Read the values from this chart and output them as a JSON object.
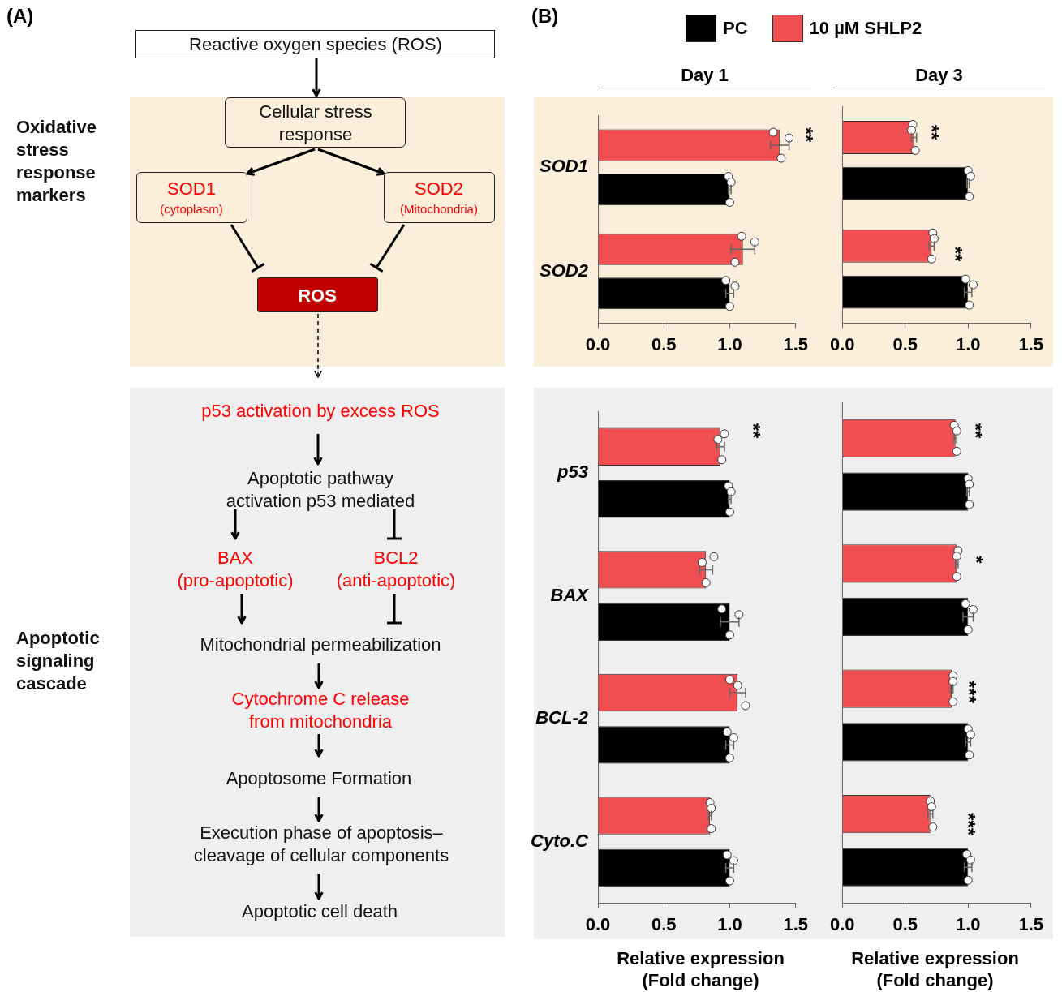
{
  "chart_data": [
    {
      "type": "other",
      "title": "(A)",
      "annotations": [
        "Reactive oxygen species (ROS)",
        "Cellular stress response",
        "SOD1",
        "(cytoplasm)",
        "SOD2",
        "(Mitochondria)",
        "ROS",
        "Oxidative stress response markers",
        "p53 activation by excess ROS",
        "Apoptotic pathway activation p53 mediated",
        "BAX",
        "(pro-apoptotic)",
        "BCL2",
        "(anti-apoptotic)",
        "Mitochondrial permeabilization",
        "Cytochrome C release from mitochondria",
        "Apoptosome Formation",
        "Execution phase of apoptosis–cleavage of cellular components",
        "Apoptotic cell death",
        "Apoptotic signaling cascade"
      ]
    },
    {
      "type": "bar",
      "orientation": "horizontal",
      "title": "Day 1",
      "categories": [
        "SOD1",
        "SOD2"
      ],
      "xlim": [
        0,
        1.5
      ],
      "xticks": [
        {
          "value": 0,
          "label": "0.0"
        },
        {
          "value": 0.5,
          "label": "0.5"
        },
        {
          "value": 1,
          "label": "1.0"
        },
        {
          "value": 1.5,
          "label": "1.5"
        }
      ],
      "legend": "top",
      "grid": false,
      "marker": "circle",
      "annotations": [
        "(B)",
        "**"
      ],
      "series": [
        {
          "name": "PC",
          "color": "#000000",
          "values": [
            1.0,
            1.0
          ],
          "errors": [
            0.01,
            0.03
          ]
        },
        {
          "name": "10 µM SHLP2",
          "color": "#f04e50",
          "values": [
            1.38,
            1.1
          ],
          "errors": [
            0.07,
            0.09
          ]
        },
        {
          "type": "scatter",
          "color": "#ffffff",
          "x": [
            "SOD1",
            "SOD1",
            "SOD1",
            "SOD2",
            "SOD2",
            "SOD2"
          ],
          "values": [
            0.99,
            1.0,
            1.01,
            0.97,
            1.0,
            1.04
          ]
        },
        {
          "type": "scatter",
          "color": "#ffffff",
          "x": [
            "SOD1",
            "SOD1",
            "SOD1",
            "SOD2",
            "SOD2",
            "SOD2"
          ],
          "values": [
            1.33,
            1.39,
            1.45,
            1.09,
            1.04,
            1.19
          ]
        }
      ]
    },
    {
      "type": "bar",
      "orientation": "horizontal",
      "title": "Day 3",
      "categories": [
        "SOD1",
        "SOD2"
      ],
      "xlim": [
        0,
        1.5
      ],
      "xticks": [
        {
          "value": 0,
          "label": "0.0"
        },
        {
          "value": 0.5,
          "label": "0.5"
        },
        {
          "value": 1,
          "label": "1.0"
        },
        {
          "value": 1.5,
          "label": "1.5"
        }
      ],
      "tick_labels": "x",
      "grid": false,
      "marker": "circle",
      "annotations": [
        "**",
        "**"
      ],
      "series": [
        {
          "color": "#000000",
          "values": [
            1.0,
            1.0
          ],
          "errors": [
            0.01,
            0.03
          ]
        },
        {
          "color": "#f04e50",
          "values": [
            0.57,
            0.71
          ],
          "errors": [
            0.02,
            0.02
          ]
        },
        {
          "type": "scatter",
          "color": "#ffffff",
          "x": [
            "SOD1",
            "SOD1",
            "SOD1",
            "SOD2",
            "SOD2",
            "SOD2"
          ],
          "values": [
            1.0,
            1.01,
            1.02,
            0.98,
            1.01,
            1.04
          ]
        },
        {
          "type": "scatter",
          "color": "#ffffff",
          "x": [
            "SOD1",
            "SOD1",
            "SOD1",
            "SOD2",
            "SOD2",
            "SOD2"
          ],
          "values": [
            0.56,
            0.58,
            0.55,
            0.72,
            0.71,
            0.73
          ]
        }
      ]
    },
    {
      "type": "bar",
      "orientation": "horizontal",
      "xlabel": "Relative expression (Fold change)",
      "categories": [
        "p53",
        "BAX",
        "BCL-2",
        "Cyto.C"
      ],
      "xlim": [
        0,
        1.5
      ],
      "xticks": [
        {
          "value": 0,
          "label": "0.0"
        },
        {
          "value": 0.5,
          "label": "0.5"
        },
        {
          "value": 1,
          "label": "1.0"
        },
        {
          "value": 1.5,
          "label": "1.5"
        }
      ],
      "grid": false,
      "marker": "circle",
      "annotations": [
        "**"
      ],
      "series": [
        {
          "color": "#000000",
          "values": [
            1.0,
            1.0,
            1.0,
            1.0
          ],
          "errors": [
            0.01,
            0.07,
            0.03,
            0.03
          ]
        },
        {
          "color": "#f04e50",
          "values": [
            0.93,
            0.82,
            1.06,
            0.85
          ],
          "errors": [
            0.03,
            0.05,
            0.06,
            0.01
          ]
        },
        {
          "type": "scatter",
          "color": "#ffffff",
          "x": [
            "p53",
            "p53",
            "p53",
            "BAX",
            "BAX",
            "BAX",
            "BCL-2",
            "BCL-2",
            "BCL-2",
            "Cyto.C",
            "Cyto.C",
            "Cyto.C"
          ],
          "values": [
            0.99,
            1.0,
            1.01,
            0.94,
            1.0,
            1.07,
            0.98,
            1.0,
            1.03,
            0.98,
            1.0,
            1.03
          ]
        },
        {
          "type": "scatter",
          "color": "#ffffff",
          "x": [
            "p53",
            "p53",
            "p53",
            "BAX",
            "BAX",
            "BAX",
            "BCL-2",
            "BCL-2",
            "BCL-2",
            "Cyto.C",
            "Cyto.C",
            "Cyto.C"
          ],
          "values": [
            0.96,
            0.94,
            0.91,
            0.88,
            0.82,
            0.79,
            1.0,
            1.12,
            1.06,
            0.85,
            0.86,
            0.86
          ]
        }
      ]
    },
    {
      "type": "bar",
      "orientation": "horizontal",
      "xlabel": "Relative expression (Fold change)",
      "categories": [
        "p53",
        "BAX",
        "BCL-2",
        "Cyto.C"
      ],
      "xlim": [
        0,
        1.5
      ],
      "xticks": [
        {
          "value": 0,
          "label": "0.0"
        },
        {
          "value": 0.5,
          "label": "0.5"
        },
        {
          "value": 1,
          "label": "1.0"
        },
        {
          "value": 1.5,
          "label": "1.5"
        }
      ],
      "tick_labels": "x",
      "grid": false,
      "marker": "circle",
      "annotations": [
        "**",
        "*",
        "***",
        "***"
      ],
      "series": [
        {
          "color": "#000000",
          "values": [
            1.0,
            1.0,
            1.0,
            1.0
          ],
          "errors": [
            0.01,
            0.04,
            0.02,
            0.03
          ]
        },
        {
          "color": "#f04e50",
          "values": [
            0.9,
            0.91,
            0.87,
            0.7
          ],
          "errors": [
            0.01,
            0.01,
            0.01,
            0.02
          ]
        },
        {
          "type": "scatter",
          "color": "#ffffff",
          "x": [
            "p53",
            "p53",
            "p53",
            "BAX",
            "BAX",
            "BAX",
            "BCL-2",
            "BCL-2",
            "BCL-2",
            "Cyto.C",
            "Cyto.C",
            "Cyto.C"
          ],
          "values": [
            1.0,
            1.01,
            1.01,
            0.98,
            1.0,
            1.04,
            1.0,
            1.01,
            1.02,
            0.99,
            1.0,
            1.02
          ]
        },
        {
          "type": "scatter",
          "color": "#ffffff",
          "x": [
            "p53",
            "p53",
            "p53",
            "BAX",
            "BAX",
            "BAX",
            "BCL-2",
            "BCL-2",
            "BCL-2",
            "Cyto.C",
            "Cyto.C",
            "Cyto.C"
          ],
          "values": [
            0.89,
            0.91,
            0.91,
            0.92,
            0.91,
            0.91,
            0.88,
            0.88,
            0.88,
            0.7,
            0.72,
            0.71
          ]
        }
      ]
    }
  ]
}
